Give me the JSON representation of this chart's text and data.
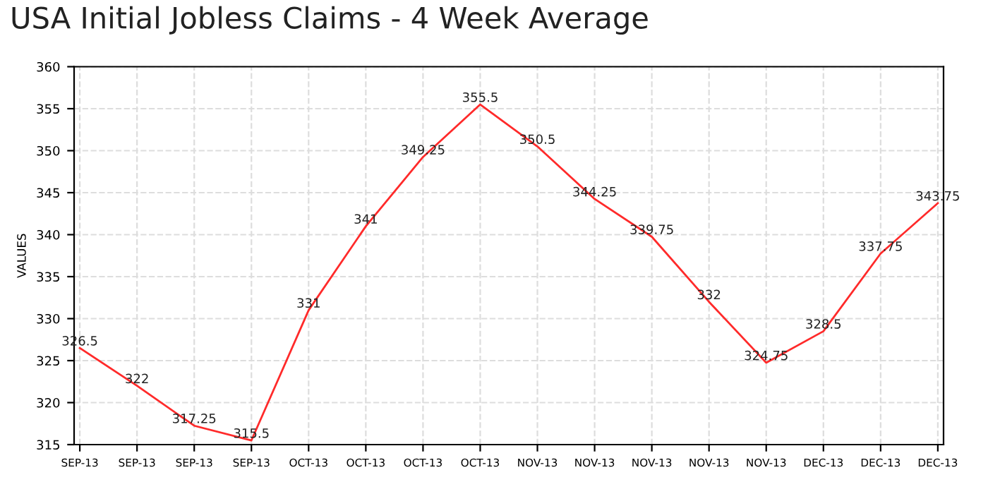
{
  "chart_data": {
    "type": "line",
    "title": "USA Initial Jobless Claims - 4 Week Average",
    "ylabel": "VALUES",
    "categories": [
      "SEP-13",
      "SEP-13",
      "SEP-13",
      "SEP-13",
      "OCT-13",
      "OCT-13",
      "OCT-13",
      "OCT-13",
      "NOV-13",
      "NOV-13",
      "NOV-13",
      "NOV-13",
      "NOV-13",
      "DEC-13",
      "DEC-13",
      "DEC-13"
    ],
    "series": [
      {
        "color": "#ff2a2a",
        "values": [
          326.5,
          322,
          317.25,
          315.5,
          331,
          341,
          349.25,
          355.5,
          350.5,
          344.25,
          339.75,
          332,
          324.75,
          328.5,
          337.75,
          343.75
        ]
      }
    ],
    "ylim": [
      315,
      360
    ],
    "yticks": [
      315,
      320,
      325,
      330,
      335,
      340,
      345,
      350,
      355,
      360
    ],
    "grid": true,
    "data_labels": true,
    "line_style": "solid"
  }
}
